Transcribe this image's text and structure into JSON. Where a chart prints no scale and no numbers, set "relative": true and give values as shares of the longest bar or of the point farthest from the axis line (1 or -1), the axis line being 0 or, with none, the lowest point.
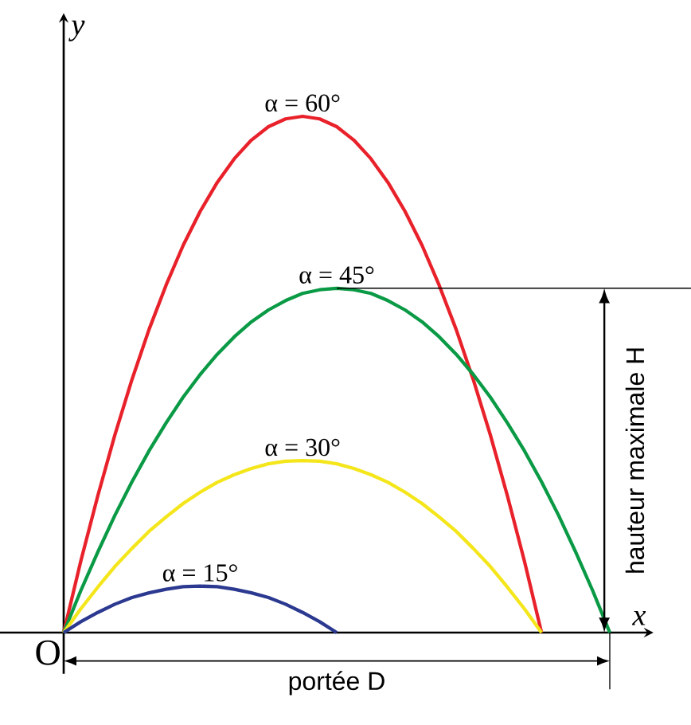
{
  "chart_data": {
    "type": "line",
    "relative": true,
    "xlabel": "x",
    "ylabel": "y",
    "categories": [
      null,
      null,
      null,
      null,
      null,
      null,
      null,
      null,
      null,
      null,
      null,
      null,
      null,
      null,
      null,
      null,
      null,
      null,
      null,
      null,
      null,
      null,
      null,
      null,
      null,
      null,
      null,
      null,
      null,
      null,
      null,
      null,
      null
    ],
    "series": [
      {
        "name": "α = 60°",
        "color": "#e8212a",
        "values": [
          0,
          0.138,
          0.265,
          0.383,
          0.49,
          0.587,
          0.673,
          0.75,
          0.816,
          0.872,
          0.918,
          0.954,
          0.98,
          0.995,
          1,
          0.995,
          0.98,
          0.954,
          0.918,
          0.872,
          0.816,
          0.75,
          0.673,
          0.587,
          0.49,
          0.383,
          0.265,
          0.138,
          0,
          null,
          null,
          null,
          null
        ]
      },
      {
        "name": "α = 45°",
        "color": "#0a9a45",
        "values": [
          0,
          0.081,
          0.156,
          0.227,
          0.292,
          0.352,
          0.406,
          0.456,
          0.5,
          0.539,
          0.573,
          0.602,
          0.625,
          0.643,
          0.657,
          0.664,
          0.667,
          0.664,
          0.657,
          0.643,
          0.625,
          0.602,
          0.573,
          0.539,
          0.5,
          0.456,
          0.406,
          0.352,
          0.292,
          0.227,
          0.156,
          0.081,
          0
        ]
      },
      {
        "name": "α = 30°",
        "color": "#f4e61a",
        "values": [
          0,
          0.046,
          0.088,
          0.128,
          0.163,
          0.196,
          0.224,
          0.25,
          0.272,
          0.291,
          0.306,
          0.318,
          0.327,
          0.332,
          0.333,
          0.332,
          0.327,
          0.318,
          0.306,
          0.291,
          0.272,
          0.25,
          0.224,
          0.196,
          0.163,
          0.128,
          0.088,
          0.046,
          0,
          null,
          null,
          null,
          null
        ]
      },
      {
        "name": "α = 15°",
        "color": "#2b3990",
        "values": [
          0,
          0.021,
          0.039,
          0.055,
          0.068,
          0.077,
          0.084,
          0.089,
          0.09,
          0.089,
          0.084,
          0.077,
          0.068,
          0.055,
          0.039,
          0.021,
          0,
          null,
          null,
          null,
          null,
          null,
          null,
          null,
          null,
          null,
          null,
          null,
          null,
          null,
          null,
          null,
          null
        ]
      }
    ],
    "annotations": [
      "O",
      "portée D",
      "hauteur maximale H"
    ],
    "legend": false,
    "marker": "none",
    "line_style": "solid"
  }
}
